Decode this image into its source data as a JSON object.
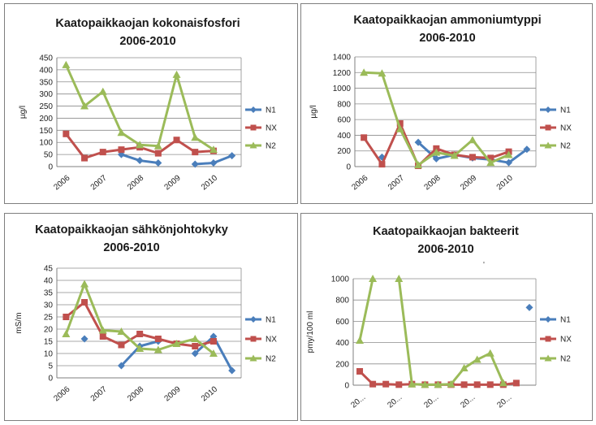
{
  "colors": {
    "N1": "#4a7ebb",
    "NX": "#c0504d",
    "N2": "#9bbb59",
    "grid": "#8c8c8c",
    "axis": "#7f7f7f"
  },
  "chart_data": [
    {
      "type": "line",
      "title": [
        "Kaatopaikkaojan kokonaisfosfori",
        "2006-2010"
      ],
      "ylabel": "µg/l",
      "ylim": [
        0,
        450
      ],
      "yticks": [
        "0",
        "50",
        "100",
        "150",
        "200",
        "250",
        "300",
        "350",
        "400",
        "450"
      ],
      "xlabels": [
        "2006",
        "2007",
        "2008",
        "2009",
        "2010"
      ],
      "series": [
        {
          "name": "N1",
          "values": [
            null,
            null,
            null,
            50,
            25,
            15,
            null,
            10,
            15,
            45
          ]
        },
        {
          "name": "NX",
          "values": [
            135,
            35,
            60,
            70,
            80,
            55,
            110,
            60,
            65,
            null
          ]
        },
        {
          "name": "N2",
          "values": [
            420,
            250,
            310,
            140,
            90,
            85,
            380,
            120,
            70,
            null
          ]
        }
      ]
    },
    {
      "type": "line",
      "title": [
        "Kaatopaikkaojan ammoniumtyppi",
        "2006-2010"
      ],
      "ylabel": "µg/l",
      "ylim": [
        0,
        1400
      ],
      "yticks": [
        "0",
        "200",
        "400",
        "600",
        "800",
        "1000",
        "1200",
        "1400"
      ],
      "xlabels": [
        "2006",
        "2007",
        "2008",
        "2009",
        "2010"
      ],
      "series": [
        {
          "name": "N1",
          "values": [
            null,
            120,
            null,
            310,
            100,
            150,
            110,
            90,
            50,
            220
          ]
        },
        {
          "name": "NX",
          "values": [
            370,
            30,
            550,
            10,
            230,
            150,
            120,
            110,
            190,
            null
          ]
        },
        {
          "name": "N2",
          "values": [
            1200,
            1190,
            480,
            20,
            180,
            140,
            340,
            50,
            150,
            null
          ]
        }
      ]
    },
    {
      "type": "line",
      "title": [
        "Kaatopaikkaojan sähkönjohtokyky",
        "2006-2010"
      ],
      "ylabel": "mS/m",
      "ylim": [
        0,
        45
      ],
      "yticks": [
        "0",
        "5",
        "10",
        "15",
        "20",
        "25",
        "30",
        "35",
        "40",
        "45"
      ],
      "xlabels": [
        "2006",
        "2007",
        "2008",
        "2009",
        "2010"
      ],
      "series": [
        {
          "name": "N1",
          "values": [
            null,
            16,
            null,
            5,
            13,
            15,
            null,
            10,
            17,
            3
          ]
        },
        {
          "name": "NX",
          "values": [
            25,
            31,
            17,
            13.5,
            18,
            16,
            14,
            13,
            15,
            null
          ]
        },
        {
          "name": "N2",
          "values": [
            18,
            38.5,
            19.5,
            19,
            12,
            11.5,
            14,
            16,
            10,
            null
          ]
        }
      ]
    },
    {
      "type": "line",
      "title": [
        "Kaatopaikkaojan bakteerit",
        "2006-2010"
      ],
      "ylabel": "pmy/100 ml",
      "ylim": [
        0,
        1000
      ],
      "yticks": [
        "0",
        "200",
        "400",
        "600",
        "800",
        "1000"
      ],
      "xlabels": [
        "20...",
        "20...",
        "20...",
        "20...",
        "20..."
      ],
      "stray_mark": "'",
      "series": [
        {
          "name": "N1",
          "values": [
            null,
            null,
            null,
            null,
            null,
            null,
            null,
            null,
            null,
            null,
            null,
            null,
            null,
            730
          ]
        },
        {
          "name": "NX",
          "values": [
            130,
            10,
            10,
            5,
            10,
            5,
            5,
            5,
            5,
            5,
            5,
            5,
            20,
            null
          ]
        },
        {
          "name": "N2",
          "values": [
            420,
            1000,
            null,
            1000,
            10,
            5,
            5,
            10,
            160,
            240,
            300,
            20,
            null,
            null
          ]
        }
      ]
    }
  ]
}
